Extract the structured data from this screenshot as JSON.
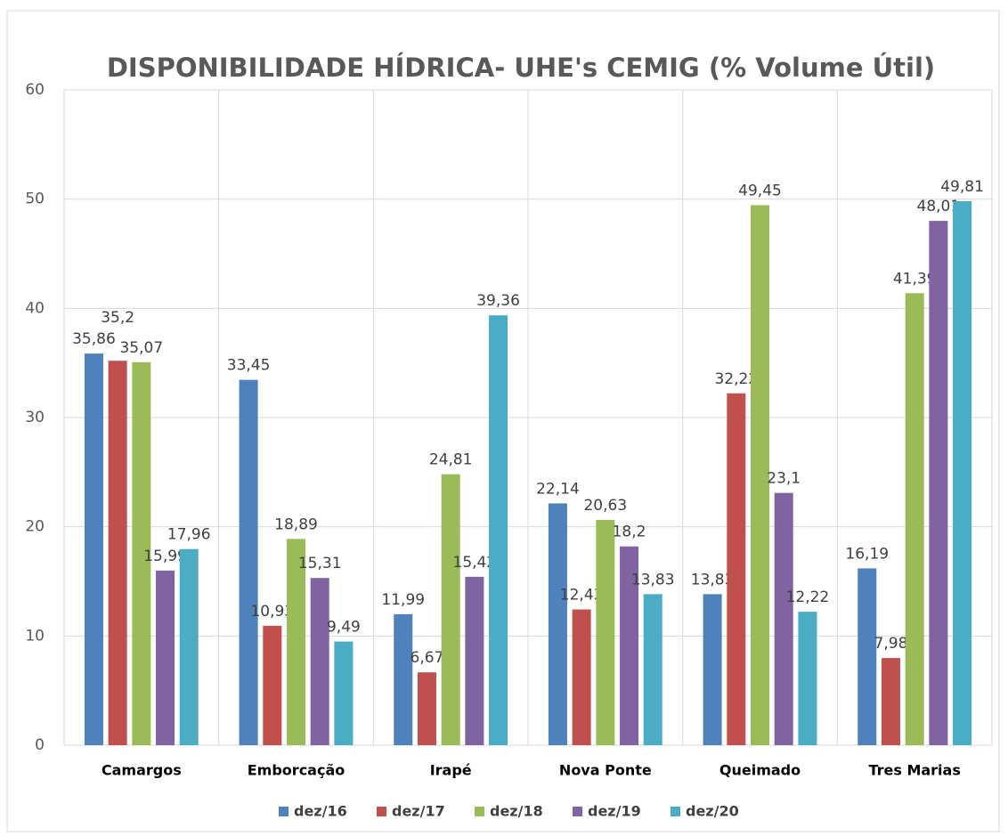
{
  "chart_data": {
    "type": "bar",
    "title": "DISPONIBILIDADE HÍDRICA- UHE's CEMIG (% Volume Útil)",
    "categories": [
      "Camargos",
      "Emborcação",
      "Irapé",
      "Nova Ponte",
      "Queimado",
      "Tres Marias"
    ],
    "series": [
      {
        "name": "dez/16",
        "color": "#4f81bd",
        "values": [
          35.86,
          33.45,
          11.99,
          22.14,
          13.83,
          16.19
        ],
        "value_labels": [
          "35,86",
          "33,45",
          "11,99",
          "22,14",
          "13,83",
          "16,19"
        ]
      },
      {
        "name": "dez/17",
        "color": "#c0504d",
        "values": [
          35.2,
          10.93,
          6.67,
          12.43,
          32.22,
          7.98
        ],
        "value_labels": [
          "35,2",
          "10,93",
          "6,67",
          "12,43",
          "32,22",
          "7,98"
        ]
      },
      {
        "name": "dez/18",
        "color": "#9bbb59",
        "values": [
          35.07,
          18.89,
          24.81,
          20.63,
          49.45,
          41.39
        ],
        "value_labels": [
          "35,07",
          "18,89",
          "24,81",
          "20,63",
          "49,45",
          "41,39"
        ]
      },
      {
        "name": "dez/19",
        "color": "#8064a2",
        "values": [
          15.99,
          15.31,
          15.42,
          18.2,
          23.1,
          48.01
        ],
        "value_labels": [
          "15,99",
          "15,31",
          "15,42",
          "18,2",
          "23,1",
          "48,01"
        ]
      },
      {
        "name": "dez/20",
        "color": "#4bacc6",
        "values": [
          17.96,
          9.49,
          39.36,
          13.83,
          12.22,
          49.81
        ],
        "value_labels": [
          "17,96",
          "9,49",
          "39,36",
          "13,83",
          "12,22",
          "49,81"
        ]
      }
    ],
    "ylim": [
      0,
      60
    ],
    "yticks": [
      0,
      10,
      20,
      30,
      40,
      50,
      60
    ],
    "grid": true,
    "legend": "bottom"
  }
}
